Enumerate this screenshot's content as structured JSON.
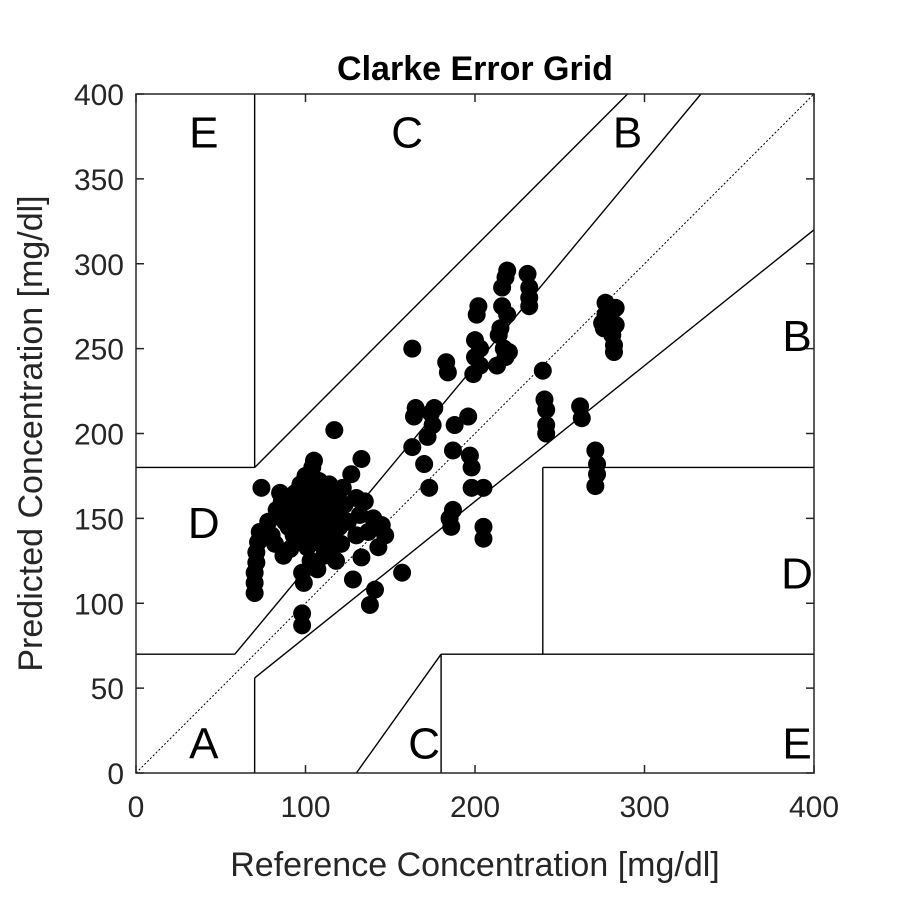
{
  "chart_data": {
    "type": "scatter",
    "title": "Clarke Error Grid",
    "xlabel": "Reference Concentration [mg/dl]",
    "ylabel": "Predicted Concentration [mg/dl]",
    "xlim": [
      0,
      400
    ],
    "ylim": [
      0,
      400
    ],
    "xticks": [
      0,
      100,
      200,
      300,
      400
    ],
    "yticks": [
      0,
      50,
      100,
      150,
      200,
      250,
      300,
      350,
      400
    ],
    "x_tick_labels": [
      "0",
      "100",
      "200",
      "300",
      "400"
    ],
    "y_tick_labels": [
      "0",
      "50",
      "100",
      "150",
      "200",
      "250",
      "300",
      "350",
      "400"
    ],
    "grid": false,
    "marker_color": "#000000",
    "zone_labels": [
      {
        "text": "A",
        "x": 40,
        "y": 18
      },
      {
        "text": "B",
        "x": 290,
        "y": 378
      },
      {
        "text": "B",
        "x": 390,
        "y": 258
      },
      {
        "text": "C",
        "x": 160,
        "y": 378
      },
      {
        "text": "C",
        "x": 170,
        "y": 18
      },
      {
        "text": "D",
        "x": 40,
        "y": 148
      },
      {
        "text": "D",
        "x": 390,
        "y": 118
      },
      {
        "text": "E",
        "x": 40,
        "y": 378
      },
      {
        "text": "E",
        "x": 390,
        "y": 18
      }
    ],
    "zone_lines": [
      [
        [
          0,
          0
        ],
        [
          400,
          400
        ]
      ],
      [
        [
          0,
          70
        ],
        [
          58.3,
          70
        ]
      ],
      [
        [
          58.3,
          70
        ],
        [
          70,
          84
        ]
      ],
      [
        [
          70,
          84
        ],
        [
          333.3,
          400
        ]
      ],
      [
        [
          70,
          56
        ],
        [
          400,
          320
        ]
      ],
      [
        [
          70,
          56
        ],
        [
          70,
          0
        ]
      ],
      [
        [
          70,
          180
        ],
        [
          70,
          400
        ]
      ],
      [
        [
          0,
          180
        ],
        [
          70,
          180
        ]
      ],
      [
        [
          70,
          180
        ],
        [
          290,
          400
        ]
      ],
      [
        [
          130,
          0
        ],
        [
          180,
          70
        ]
      ],
      [
        [
          180,
          70
        ],
        [
          180,
          0
        ]
      ],
      [
        [
          180,
          70
        ],
        [
          400,
          70
        ]
      ],
      [
        [
          240,
          70
        ],
        [
          240,
          180
        ]
      ],
      [
        [
          240,
          180
        ],
        [
          400,
          180
        ]
      ]
    ],
    "points": [
      {
        "x": 70,
        "y": 106
      },
      {
        "x": 70,
        "y": 112
      },
      {
        "x": 70,
        "y": 118
      },
      {
        "x": 71,
        "y": 124
      },
      {
        "x": 71,
        "y": 130
      },
      {
        "x": 72,
        "y": 136
      },
      {
        "x": 73,
        "y": 142
      },
      {
        "x": 74,
        "y": 168
      },
      {
        "x": 78,
        "y": 148
      },
      {
        "x": 80,
        "y": 140
      },
      {
        "x": 82,
        "y": 135
      },
      {
        "x": 83,
        "y": 155
      },
      {
        "x": 85,
        "y": 165
      },
      {
        "x": 86,
        "y": 160
      },
      {
        "x": 87,
        "y": 128
      },
      {
        "x": 88,
        "y": 148
      },
      {
        "x": 90,
        "y": 145
      },
      {
        "x": 90,
        "y": 158
      },
      {
        "x": 91,
        "y": 132
      },
      {
        "x": 92,
        "y": 150
      },
      {
        "x": 93,
        "y": 140
      },
      {
        "x": 94,
        "y": 165
      },
      {
        "x": 95,
        "y": 155
      },
      {
        "x": 96,
        "y": 138
      },
      {
        "x": 97,
        "y": 170
      },
      {
        "x": 98,
        "y": 118
      },
      {
        "x": 98,
        "y": 94
      },
      {
        "x": 98,
        "y": 87
      },
      {
        "x": 99,
        "y": 112
      },
      {
        "x": 99,
        "y": 148
      },
      {
        "x": 100,
        "y": 160
      },
      {
        "x": 100,
        "y": 175
      },
      {
        "x": 101,
        "y": 133
      },
      {
        "x": 102,
        "y": 142
      },
      {
        "x": 102,
        "y": 152
      },
      {
        "x": 103,
        "y": 125
      },
      {
        "x": 103,
        "y": 168
      },
      {
        "x": 104,
        "y": 180
      },
      {
        "x": 105,
        "y": 184
      },
      {
        "x": 105,
        "y": 145
      },
      {
        "x": 106,
        "y": 138
      },
      {
        "x": 106,
        "y": 158
      },
      {
        "x": 107,
        "y": 120
      },
      {
        "x": 108,
        "y": 150
      },
      {
        "x": 108,
        "y": 172
      },
      {
        "x": 109,
        "y": 135
      },
      {
        "x": 110,
        "y": 143
      },
      {
        "x": 110,
        "y": 165
      },
      {
        "x": 111,
        "y": 128
      },
      {
        "x": 112,
        "y": 155
      },
      {
        "x": 112,
        "y": 147
      },
      {
        "x": 113,
        "y": 138
      },
      {
        "x": 114,
        "y": 170
      },
      {
        "x": 115,
        "y": 160
      },
      {
        "x": 115,
        "y": 132
      },
      {
        "x": 116,
        "y": 150
      },
      {
        "x": 117,
        "y": 142
      },
      {
        "x": 118,
        "y": 163
      },
      {
        "x": 118,
        "y": 125
      },
      {
        "x": 120,
        "y": 155
      },
      {
        "x": 120,
        "y": 145
      },
      {
        "x": 121,
        "y": 135
      },
      {
        "x": 122,
        "y": 168
      },
      {
        "x": 123,
        "y": 158
      },
      {
        "x": 125,
        "y": 148
      },
      {
        "x": 117,
        "y": 202
      },
      {
        "x": 127,
        "y": 176
      },
      {
        "x": 128,
        "y": 114
      },
      {
        "x": 130,
        "y": 162
      },
      {
        "x": 130,
        "y": 140
      },
      {
        "x": 132,
        "y": 152
      },
      {
        "x": 133,
        "y": 185
      },
      {
        "x": 133,
        "y": 127
      },
      {
        "x": 135,
        "y": 160
      },
      {
        "x": 137,
        "y": 142
      },
      {
        "x": 138,
        "y": 99
      },
      {
        "x": 140,
        "y": 150
      },
      {
        "x": 141,
        "y": 108
      },
      {
        "x": 143,
        "y": 133
      },
      {
        "x": 145,
        "y": 146
      },
      {
        "x": 147,
        "y": 140
      },
      {
        "x": 157,
        "y": 118
      },
      {
        "x": 163,
        "y": 250
      },
      {
        "x": 163,
        "y": 192
      },
      {
        "x": 164,
        "y": 210
      },
      {
        "x": 165,
        "y": 215
      },
      {
        "x": 170,
        "y": 182
      },
      {
        "x": 172,
        "y": 198
      },
      {
        "x": 173,
        "y": 168
      },
      {
        "x": 174,
        "y": 212
      },
      {
        "x": 175,
        "y": 205
      },
      {
        "x": 176,
        "y": 215
      },
      {
        "x": 183,
        "y": 242
      },
      {
        "x": 184,
        "y": 236
      },
      {
        "x": 185,
        "y": 150
      },
      {
        "x": 186,
        "y": 145
      },
      {
        "x": 187,
        "y": 155
      },
      {
        "x": 187,
        "y": 190
      },
      {
        "x": 188,
        "y": 205
      },
      {
        "x": 196,
        "y": 210
      },
      {
        "x": 197,
        "y": 187
      },
      {
        "x": 198,
        "y": 180
      },
      {
        "x": 198,
        "y": 168
      },
      {
        "x": 199,
        "y": 235
      },
      {
        "x": 200,
        "y": 245
      },
      {
        "x": 200,
        "y": 255
      },
      {
        "x": 201,
        "y": 270
      },
      {
        "x": 202,
        "y": 275
      },
      {
        "x": 203,
        "y": 240
      },
      {
        "x": 203,
        "y": 250
      },
      {
        "x": 205,
        "y": 168
      },
      {
        "x": 205,
        "y": 145
      },
      {
        "x": 205,
        "y": 138
      },
      {
        "x": 213,
        "y": 240
      },
      {
        "x": 214,
        "y": 258
      },
      {
        "x": 215,
        "y": 262
      },
      {
        "x": 216,
        "y": 275
      },
      {
        "x": 216,
        "y": 286
      },
      {
        "x": 217,
        "y": 250
      },
      {
        "x": 218,
        "y": 245
      },
      {
        "x": 218,
        "y": 292
      },
      {
        "x": 219,
        "y": 296
      },
      {
        "x": 219,
        "y": 270
      },
      {
        "x": 220,
        "y": 248
      },
      {
        "x": 231,
        "y": 294
      },
      {
        "x": 232,
        "y": 286
      },
      {
        "x": 232,
        "y": 280
      },
      {
        "x": 232,
        "y": 275
      },
      {
        "x": 240,
        "y": 237
      },
      {
        "x": 241,
        "y": 220
      },
      {
        "x": 242,
        "y": 214
      },
      {
        "x": 242,
        "y": 205
      },
      {
        "x": 242,
        "y": 200
      },
      {
        "x": 262,
        "y": 216
      },
      {
        "x": 263,
        "y": 209
      },
      {
        "x": 271,
        "y": 190
      },
      {
        "x": 272,
        "y": 182
      },
      {
        "x": 272,
        "y": 176
      },
      {
        "x": 271,
        "y": 169
      },
      {
        "x": 275,
        "y": 265
      },
      {
        "x": 276,
        "y": 262
      },
      {
        "x": 277,
        "y": 270
      },
      {
        "x": 277,
        "y": 277
      },
      {
        "x": 280,
        "y": 268
      },
      {
        "x": 281,
        "y": 258
      },
      {
        "x": 282,
        "y": 248
      },
      {
        "x": 282,
        "y": 252
      },
      {
        "x": 283,
        "y": 264
      },
      {
        "x": 283,
        "y": 274
      }
    ]
  }
}
